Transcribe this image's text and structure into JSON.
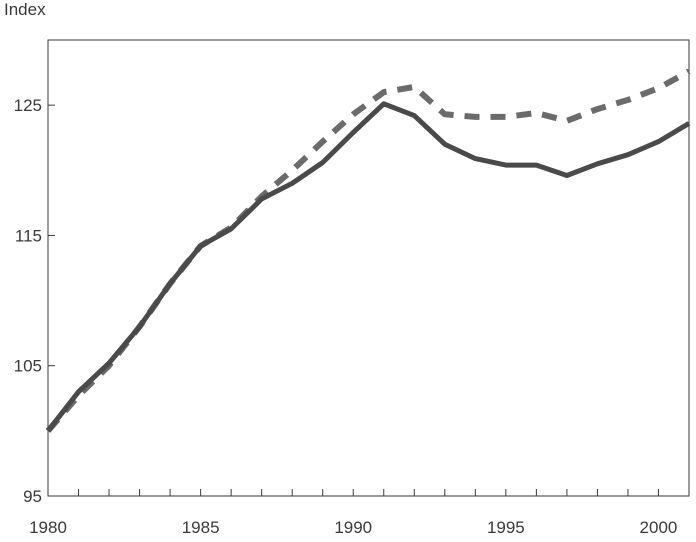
{
  "chart_data": {
    "type": "line",
    "title": "",
    "xlabel": "",
    "ylabel": "Index",
    "xlim": [
      1980,
      2001
    ],
    "ylim": [
      95,
      130
    ],
    "x_ticks": [
      1980,
      1985,
      1990,
      1995,
      2000
    ],
    "x_tick_labels": [
      "1980",
      "1985",
      "1990",
      "1995",
      "2000"
    ],
    "y_ticks": [
      95,
      105,
      115,
      125
    ],
    "y_tick_labels": [
      "95",
      "105",
      "115",
      "125"
    ],
    "grid": false,
    "legend": "none",
    "x": [
      1980,
      1981,
      1982,
      1983,
      1984,
      1985,
      1986,
      1987,
      1988,
      1989,
      1990,
      1991,
      1992,
      1993,
      1994,
      1995,
      1996,
      1997,
      1998,
      1999,
      2000,
      2001
    ],
    "series": [
      {
        "style": "solid",
        "color": "#4a4a4a",
        "values": [
          100.0,
          103.0,
          105.2,
          108.0,
          111.3,
          114.2,
          115.5,
          117.8,
          119.0,
          120.6,
          122.9,
          125.1,
          124.2,
          122.0,
          120.9,
          120.4,
          120.4,
          119.6,
          120.5,
          121.2,
          122.2,
          123.6
        ]
      },
      {
        "style": "dashed",
        "color": "#6b6b6b",
        "values": [
          100.0,
          102.7,
          105.0,
          108.0,
          111.3,
          114.2,
          115.6,
          118.0,
          120.0,
          122.2,
          124.3,
          126.0,
          126.4,
          124.3,
          124.1,
          124.1,
          124.4,
          123.8,
          124.7,
          125.4,
          126.3,
          127.6
        ]
      }
    ]
  }
}
